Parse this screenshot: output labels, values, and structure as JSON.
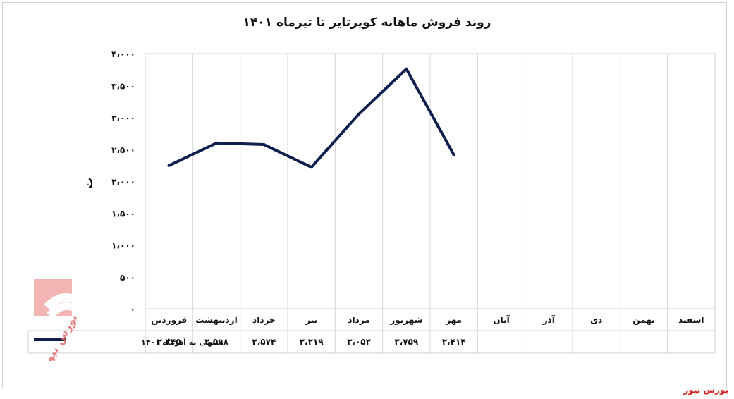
{
  "chart_data": {
    "type": "line",
    "title": "روند فروش ماهانه کویرتایر تا تیرماه ۱۴۰۱",
    "ylabel": "ت",
    "xlabel": "",
    "ylim": [
      0,
      4000
    ],
    "yticks": [
      "۰",
      "۵۰۰",
      "۱،۰۰۰",
      "۱،۵۰۰",
      "۲،۰۰۰",
      "۲،۵۰۰",
      "۳،۰۰۰",
      "۳،۵۰۰",
      "۴،۰۰۰"
    ],
    "ytick_values": [
      0,
      500,
      1000,
      1500,
      2000,
      2500,
      3000,
      3500,
      4000
    ],
    "categories": [
      "فروردین",
      "اردیبهشت",
      "خرداد",
      "تیر",
      "مرداد",
      "شهریور",
      "مهر",
      "آبان",
      "آذر",
      "دی",
      "بهمن",
      "اسفند"
    ],
    "series": [
      {
        "name": "منتهی به آذرماه ۱۴۰۱",
        "color": "#0f1f4d",
        "values": [
          2245,
          2598,
          2574,
          2219,
          3052,
          3759,
          2414,
          null,
          null,
          null,
          null,
          null
        ],
        "labels": [
          "۲،۲۴۵",
          "۲،۵۹۸",
          "۲،۵۷۴",
          "۲،۲۱۹",
          "۳،۰۵۲",
          "۳،۷۵۹",
          "۲،۴۱۴",
          "",
          "",
          "",
          "",
          ""
        ]
      }
    ],
    "grid": true,
    "legend": "data-table-left"
  },
  "source": "بورس نیوز"
}
